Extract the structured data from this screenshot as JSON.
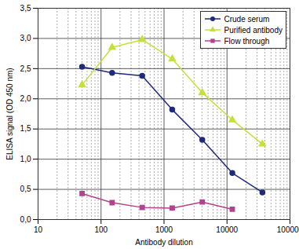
{
  "chart_data": {
    "type": "line",
    "x_label": "Antibody dilution",
    "y_label": "ELISA signal (OD 450 nm)",
    "log": "x",
    "grid": true,
    "legend": "top-right",
    "x": [
      50,
      150,
      450,
      1350,
      4050,
      12150,
      36450
    ],
    "series": [
      {
        "name": "Crude serum",
        "color": "#1f2a7a",
        "marker": "circle",
        "values": [
          2.53,
          2.43,
          2.38,
          1.82,
          1.32,
          0.77,
          0.45
        ]
      },
      {
        "name": "Purified antibody",
        "color": "#c6e03a",
        "marker": "triangle",
        "values": [
          2.23,
          2.85,
          2.98,
          2.66,
          2.1,
          1.65,
          1.25
        ]
      },
      {
        "name": "Flow through",
        "color": "#b0448f",
        "marker": "square",
        "values": [
          0.43,
          0.28,
          0.2,
          0.19,
          0.29,
          0.17,
          null
        ]
      }
    ],
    "xlim": [
      10,
      100000
    ],
    "xticks": [
      10,
      100,
      1000,
      10000,
      100000
    ],
    "ylim": [
      0,
      3.5
    ],
    "yticks": [
      {
        "value": 0,
        "label": "0,0"
      },
      {
        "value": 0.5,
        "label": "0,5"
      },
      {
        "value": 1,
        "label": "1,0"
      },
      {
        "value": 1.5,
        "label": "1,5"
      },
      {
        "value": 2,
        "label": "2,0"
      },
      {
        "value": 2.5,
        "label": "2,5"
      },
      {
        "value": 3,
        "label": "3,0"
      },
      {
        "value": 3.5,
        "label": "3,5"
      }
    ]
  }
}
